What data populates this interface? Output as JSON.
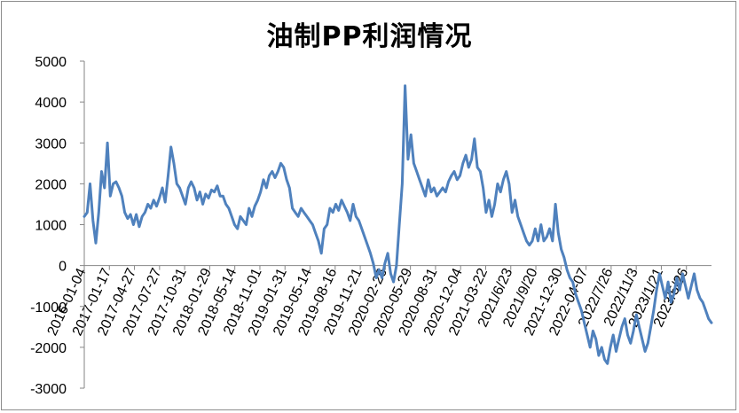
{
  "chart_data": {
    "type": "line",
    "title": "油制PP利润情况",
    "xlabel": "",
    "ylabel": "",
    "ylim": [
      -3000,
      5000
    ],
    "yticks": [
      5000,
      4000,
      3000,
      2000,
      1000,
      0,
      -1000,
      -2000,
      -3000
    ],
    "grid": false,
    "legend": "none",
    "x_tick_labels": [
      "2016-01-04",
      "2017-01-17",
      "2017-04-27",
      "2017-07-27",
      "2017-10-31",
      "2018-01-29",
      "2018-05-14",
      "2018-11-01",
      "2019-01-31",
      "2019-05-14",
      "2019-08-16",
      "2019-11-21",
      "2020-02-26",
      "2020-05-29",
      "2020-08-31",
      "2020-12-04",
      "2021-03-22",
      "2021/6/23",
      "2021/9/20",
      "2021-12-30",
      "2022-04-07",
      "2022/7/26",
      "2022/11/3",
      "2023/1/21",
      "2023/5/26"
    ],
    "series": [
      {
        "name": "",
        "color": "#4f81bd",
        "values": [
          1200,
          1300,
          2000,
          1100,
          550,
          1300,
          2300,
          1900,
          3000,
          1700,
          2000,
          2050,
          1900,
          1700,
          1300,
          1150,
          1250,
          1000,
          1250,
          950,
          1200,
          1300,
          1500,
          1400,
          1600,
          1450,
          1650,
          1900,
          1550,
          2200,
          2900,
          2500,
          2000,
          1900,
          1700,
          1500,
          1900,
          2050,
          1900,
          1600,
          1800,
          1500,
          1750,
          1650,
          1850,
          1800,
          1950,
          1700,
          1700,
          1500,
          1400,
          1200,
          1000,
          900,
          1200,
          1100,
          1000,
          1400,
          1200,
          1450,
          1600,
          1800,
          2100,
          1900,
          2200,
          2300,
          2150,
          2300,
          2500,
          2400,
          2100,
          1900,
          1400,
          1300,
          1200,
          1400,
          1300,
          1200,
          1100,
          1000,
          800,
          600,
          300,
          900,
          1000,
          1400,
          1300,
          1500,
          1350,
          1600,
          1450,
          1300,
          1100,
          1500,
          1200,
          1100,
          900,
          700,
          500,
          300,
          50,
          -300,
          -100,
          -300,
          50,
          300,
          -200,
          -400,
          0,
          1000,
          2000,
          4400,
          2600,
          3200,
          2500,
          2300,
          2100,
          1900,
          1700,
          2100,
          1800,
          1900,
          1700,
          1800,
          1900,
          1800,
          2050,
          2200,
          2300,
          2100,
          2200,
          2500,
          2700,
          2400,
          2600,
          3100,
          2400,
          2300,
          1900,
          1300,
          1600,
          1200,
          1500,
          2000,
          1800,
          2100,
          2300,
          2000,
          1300,
          1600,
          1200,
          1000,
          800,
          600,
          500,
          600,
          900,
          600,
          1000,
          600,
          700,
          900,
          600,
          1500,
          800,
          400,
          200,
          -100,
          -300,
          -400,
          -700,
          -900,
          -1100,
          -1400,
          -1700,
          -2000,
          -1600,
          -1800,
          -2200,
          -2000,
          -2300,
          -2400,
          -2000,
          -1700,
          -2100,
          -1800,
          -1500,
          -1300,
          -1700,
          -1900,
          -1600,
          -1200,
          -1500,
          -1800,
          -2100,
          -1900,
          -1500,
          -1100,
          -600,
          -200,
          -500,
          -800,
          -400,
          -900,
          -700,
          -300,
          -600,
          -200,
          -500,
          -800,
          -500,
          -200,
          -600,
          -800,
          -900,
          -1100,
          -1300,
          -1400
        ]
      }
    ]
  }
}
